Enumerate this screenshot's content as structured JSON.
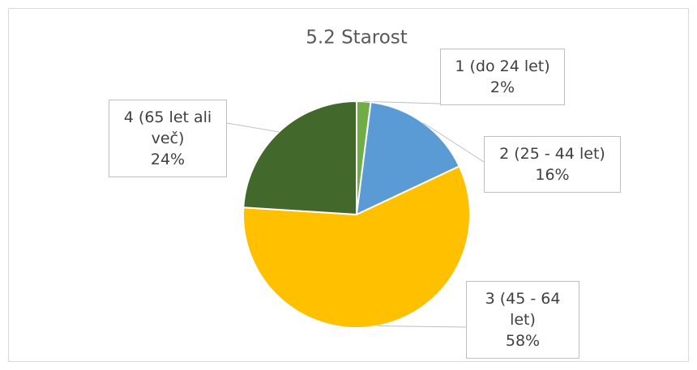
{
  "chart_data": {
    "type": "pie",
    "title": "5.2 Starost",
    "categories": [
      "1 (do 24 let)",
      "2 (25 - 44 let)",
      "3 (45 - 64 let)",
      "4 (65 let ali več)"
    ],
    "values": [
      2,
      16,
      58,
      24
    ],
    "value_labels": [
      "2%",
      "16%",
      "58%",
      "24%"
    ],
    "colors": [
      "#70ad47",
      "#5b9bd5",
      "#ffc000",
      "#43682b"
    ]
  }
}
